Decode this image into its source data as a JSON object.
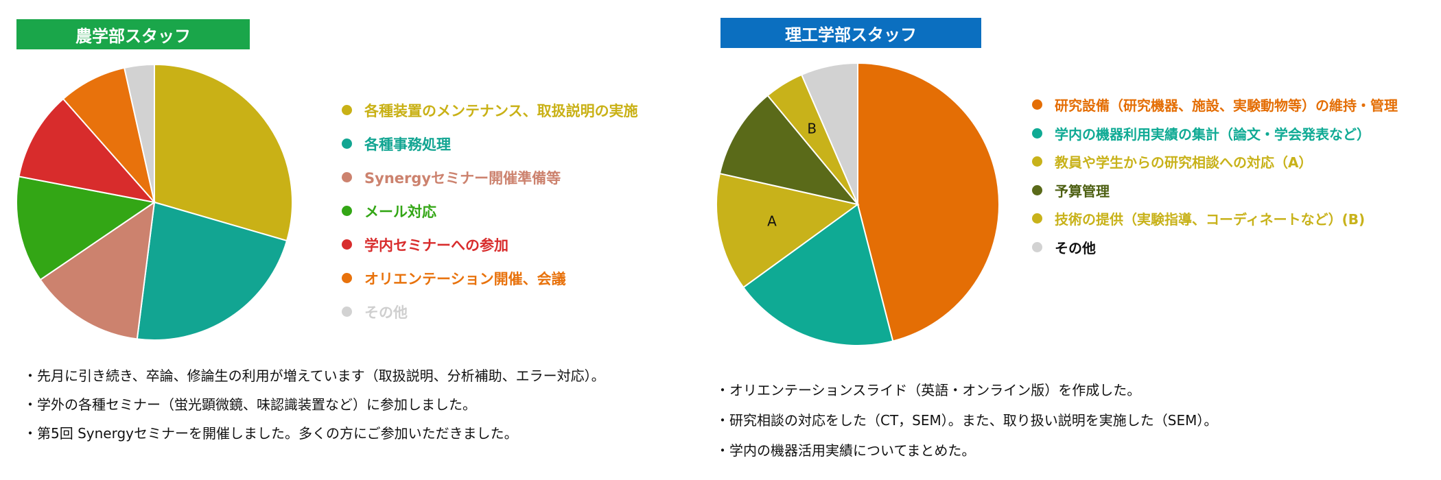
{
  "left": {
    "title": "農学部スタッフ",
    "title_color": "#1aa64a",
    "notes": [
      "・先月に引き続き、卒論、修論生の利用が増えています（取扱説明、分析補助、エラー対応）。",
      "・学外の各種セミナー（蛍光顕微鏡、味認識装置など）に参加しました。",
      "・第5回 Synergyセミナーを開催しました。多くの方にご参加いただきました。"
    ]
  },
  "right": {
    "title": "理工学部スタッフ",
    "title_color": "#0b6fc0",
    "notes": [
      "・オリエンテーションスライド（英語・オンライン版）を作成した。",
      "・研究相談の対応をした（CT，SEM）。また、取り扱い説明を実施した（SEM）。",
      "・学内の機器活用実績についてまとめた。"
    ]
  },
  "chart_data": [
    {
      "type": "pie",
      "title": "農学部スタッフ",
      "categories": [
        "各種装置のメンテナンス、取扱説明の実施",
        "各種事務処理",
        "Synergyセミナー開催準備等",
        "メール対応",
        "学内セミナーへの参加",
        "オリエンテーション開催、会議",
        "その他"
      ],
      "values": [
        29.5,
        22.5,
        13.5,
        12.5,
        10.5,
        8.0,
        3.5
      ],
      "colors": [
        "#c9b116",
        "#12a592",
        "#cc826e",
        "#33a615",
        "#d82c2c",
        "#e8720c",
        "#d2d2d2"
      ],
      "label_colors": [
        "#c9b116",
        "#12a592",
        "#cc826e",
        "#33a615",
        "#d82c2c",
        "#e8720c",
        "#cfcfcf"
      ],
      "start_angle": 0,
      "slice_labels": [
        "",
        "",
        "",
        "",
        "",
        "",
        ""
      ],
      "legend": "right"
    },
    {
      "type": "pie",
      "title": "理工学部スタッフ",
      "categories": [
        "研究設備（研究機器、施設、実験動物等）の維持・管理",
        "学内の機器利用実績の集計（論文・学会発表など）",
        "教員や学生からの研究相談への対応（A）",
        "予算管理",
        "技術の提供（実験指導、コーディネートなど）(B)",
        "その他"
      ],
      "values": [
        46.0,
        19.0,
        13.5,
        10.5,
        4.5,
        6.5
      ],
      "colors": [
        "#e46e05",
        "#0faa94",
        "#c8b21a",
        "#5a6a19",
        "#c8b21a",
        "#d2d2d2"
      ],
      "label_colors": [
        "#e46e05",
        "#0faa94",
        "#c8b21a",
        "#4d5f12",
        "#c8b21a",
        "#111111"
      ],
      "start_angle": 0,
      "slice_labels": [
        "",
        "",
        "A",
        "",
        "B",
        ""
      ],
      "legend": "right"
    }
  ]
}
